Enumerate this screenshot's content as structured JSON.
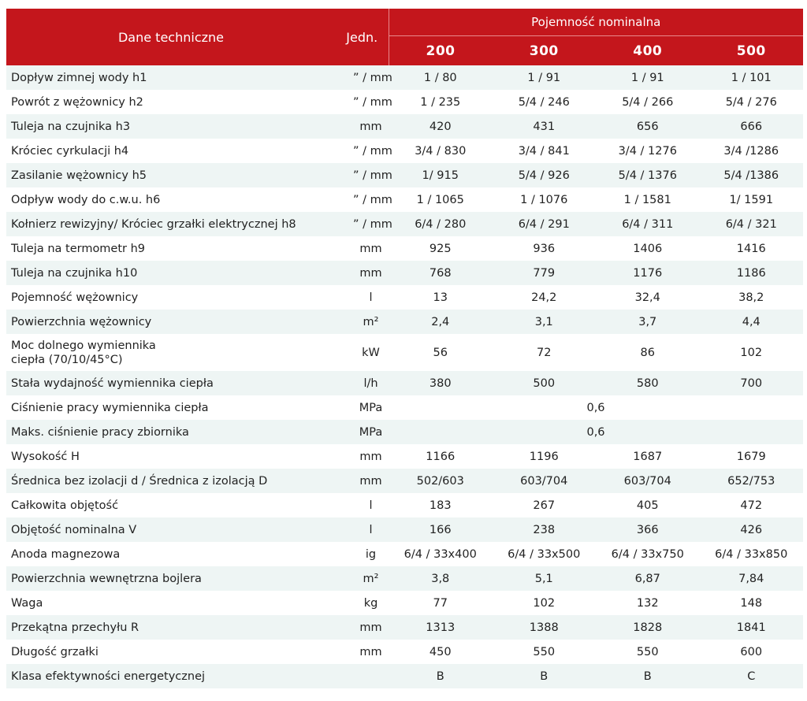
{
  "header": {
    "param_label": "Dane techniczne",
    "unit_label": "Jedn.",
    "group_label": "Pojemność nominalna",
    "capacities": [
      "200",
      "300",
      "400",
      "500"
    ]
  },
  "rows": [
    {
      "label": "Dopływ zimnej wody h1",
      "unit": "” / mm",
      "values": [
        "1 / 80",
        "1 / 91",
        "1 / 91",
        "1 / 101"
      ]
    },
    {
      "label": "Powrót z wężownicy h2",
      "unit": "” / mm",
      "values": [
        "1 / 235",
        "5/4 / 246",
        "5/4 / 266",
        "5/4 / 276"
      ]
    },
    {
      "label": "Tuleja na czujnika h3",
      "unit": "mm",
      "values": [
        "420",
        "431",
        "656",
        "666"
      ]
    },
    {
      "label": "Króciec cyrkulacji h4",
      "unit": "” / mm",
      "values": [
        "3/4 / 830",
        "3/4 / 841",
        "3/4 / 1276",
        "3/4 /1286"
      ]
    },
    {
      "label": "Zasilanie wężownicy h5",
      "unit": "” / mm",
      "values": [
        "1/ 915",
        "5/4 / 926",
        "5/4 / 1376",
        "5/4 /1386"
      ]
    },
    {
      "label": "Odpływ wody do c.w.u. h6",
      "unit": "” / mm",
      "values": [
        "1 / 1065",
        "1 / 1076",
        "1 / 1581",
        "1/ 1591"
      ]
    },
    {
      "label": "Kołnierz rewizyjny/ Króciec grzałki elektrycznej  h8",
      "unit": "” / mm",
      "values": [
        "6/4 / 280",
        "6/4 / 291",
        "6/4 / 311",
        "6/4 / 321"
      ]
    },
    {
      "label": "Tuleja na termometr h9",
      "unit": "mm",
      "values": [
        "925",
        "936",
        "1406",
        "1416"
      ]
    },
    {
      "label": "Tuleja na czujnika h10",
      "unit": "mm",
      "values": [
        "768",
        "779",
        "1176",
        "1186"
      ]
    },
    {
      "label": "Pojemność wężownicy",
      "unit": "l",
      "values": [
        "13",
        "24,2",
        "32,4",
        "38,2"
      ]
    },
    {
      "label": "Powierzchnia wężownicy",
      "unit": "m²",
      "values": [
        "2,4",
        "3,1",
        "3,7",
        "4,4"
      ]
    },
    {
      "label": "Moc dolnego wymiennika ciepła (70/10/45°C)",
      "unit": "kW",
      "values": [
        "56",
        "72",
        "86",
        "102"
      ]
    },
    {
      "label": "Stała wydajność wymiennika ciepła",
      "unit": "l/h",
      "values": [
        "380",
        "500",
        "580",
        "700"
      ]
    },
    {
      "label": "Ciśnienie pracy wymiennika ciepła",
      "unit": "MPa",
      "span_value": "0,6"
    },
    {
      "label": "Maks. ciśnienie pracy zbiornika",
      "unit": "MPa",
      "span_value": "0,6"
    },
    {
      "label": "Wysokość H",
      "unit": "mm",
      "values": [
        "1166",
        "1196",
        "1687",
        "1679"
      ]
    },
    {
      "label": "Średnica bez izolacji d / Średnica z izolacją D",
      "unit": "mm",
      "values": [
        "502/603",
        "603/704",
        "603/704",
        "652/753"
      ]
    },
    {
      "label": "Całkowita objętość",
      "unit": "l",
      "values": [
        "183",
        "267",
        "405",
        "472"
      ]
    },
    {
      "label": "Objętość nominalna V",
      "unit": "l",
      "values": [
        "166",
        "238",
        "366",
        "426"
      ]
    },
    {
      "label": "Anoda magnezowa",
      "unit": "ig",
      "values": [
        "6/4  / 33x400",
        "6/4  / 33x500",
        "6/4  / 33x750",
        "6/4  / 33x850"
      ]
    },
    {
      "label": "Powierzchnia wewnętrzna bojlera",
      "unit": "m²",
      "values": [
        "3,8",
        "5,1",
        "6,87",
        "7,84"
      ]
    },
    {
      "label": "Waga",
      "unit": "kg",
      "values": [
        "77",
        "102",
        "132",
        "148"
      ]
    },
    {
      "label": "Przekątna przechyłu R",
      "unit": "mm",
      "values": [
        "1313",
        "1388",
        "1828",
        "1841"
      ]
    },
    {
      "label": "Długość grzałki",
      "unit": "mm",
      "values": [
        "450",
        "550",
        "550",
        "600"
      ]
    },
    {
      "label": "Klasa efektywności energetycznej",
      "unit": "",
      "values": [
        "B",
        "B",
        "B",
        "C"
      ]
    }
  ]
}
